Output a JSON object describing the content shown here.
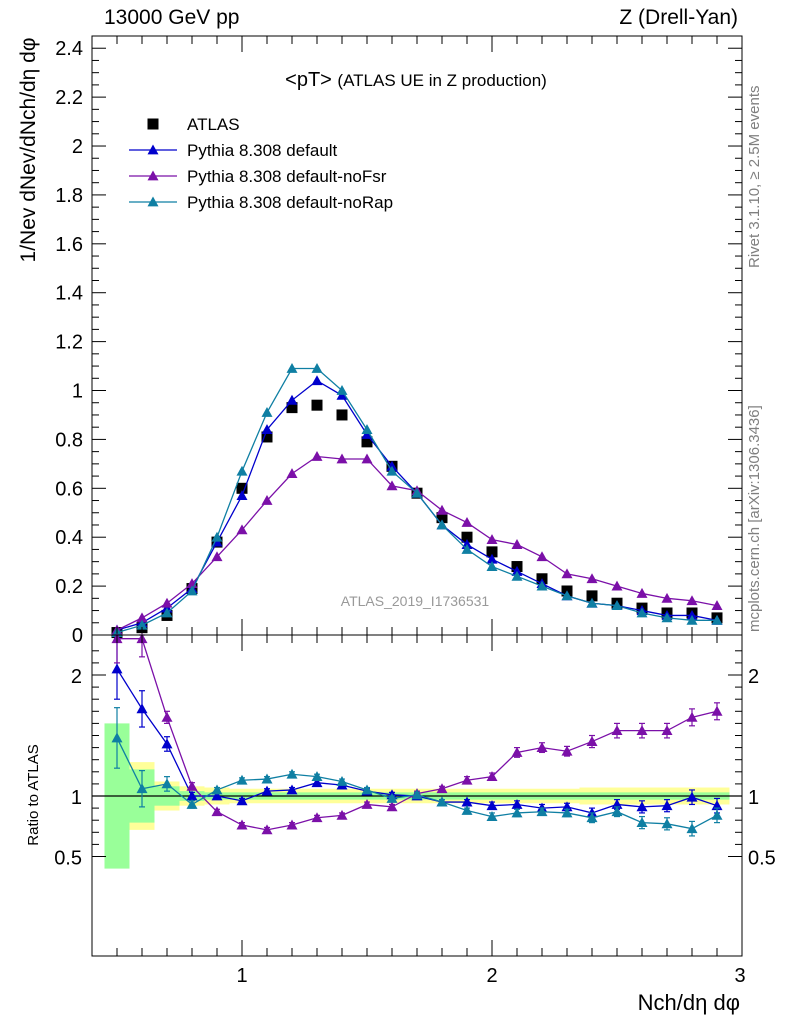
{
  "header": {
    "left": "13000 GeV pp",
    "right": "Z (Drell-Yan)"
  },
  "side_labels": {
    "top": "Rivet 3.1.10, ≥ 2.5M events",
    "bottom": "mcplots.cern.ch [arXiv:1306.3436]"
  },
  "chart_data": [
    {
      "type": "scatter",
      "title": "<pT> (ATLAS UE in Z production)",
      "title_main": "<pT>",
      "title_sub": "(ATLAS UE in Z production)",
      "watermark": "ATLAS_2019_I1736531",
      "ylabel": "1/Nev dNev/dNch/dη dφ",
      "xlim": [
        0.4,
        3.0
      ],
      "ylim": [
        0,
        2.45
      ],
      "y_ticks": [
        "0",
        "0.2",
        "0.4",
        "0.6",
        "0.8",
        "1",
        "1.2",
        "1.4",
        "1.6",
        "1.8",
        "2",
        "2.2",
        "2.4"
      ],
      "x": [
        0.5,
        0.6,
        0.7,
        0.8,
        0.9,
        1.0,
        1.1,
        1.2,
        1.3,
        1.4,
        1.5,
        1.6,
        1.7,
        1.8,
        1.9,
        2.0,
        2.1,
        2.2,
        2.3,
        2.4,
        2.5,
        2.6,
        2.7,
        2.8,
        2.9
      ],
      "legend": {
        "placement": "top-left"
      },
      "series": [
        {
          "name": "ATLAS",
          "color": "#000000",
          "marker": "square",
          "values": [
            0.01,
            0.03,
            0.08,
            0.19,
            0.38,
            0.6,
            0.81,
            0.93,
            0.94,
            0.9,
            0.79,
            0.69,
            0.58,
            0.48,
            0.4,
            0.34,
            0.28,
            0.23,
            0.18,
            0.16,
            0.13,
            0.11,
            0.09,
            0.09,
            0.07
          ]
        },
        {
          "name": "Pythia 8.308 default",
          "color": "#0000cc",
          "marker": "triangle",
          "values": [
            0.02,
            0.05,
            0.11,
            0.19,
            0.38,
            0.57,
            0.84,
            0.96,
            1.04,
            0.98,
            0.82,
            0.69,
            0.58,
            0.45,
            0.37,
            0.31,
            0.26,
            0.21,
            0.16,
            0.13,
            0.12,
            0.1,
            0.08,
            0.08,
            0.06
          ]
        },
        {
          "name": "Pythia 8.308 default-noFsr",
          "color": "#7b10a8",
          "marker": "triangle",
          "values": [
            0.02,
            0.07,
            0.13,
            0.21,
            0.32,
            0.43,
            0.55,
            0.66,
            0.73,
            0.72,
            0.72,
            0.61,
            0.59,
            0.51,
            0.46,
            0.39,
            0.37,
            0.32,
            0.25,
            0.23,
            0.2,
            0.17,
            0.15,
            0.14,
            0.12
          ]
        },
        {
          "name": "Pythia 8.308 default-noRap",
          "color": "#0f7fa3",
          "marker": "triangle",
          "values": [
            0.01,
            0.04,
            0.09,
            0.18,
            0.4,
            0.67,
            0.91,
            1.09,
            1.09,
            1.0,
            0.84,
            0.67,
            0.58,
            0.45,
            0.35,
            0.28,
            0.24,
            0.2,
            0.16,
            0.13,
            0.12,
            0.09,
            0.07,
            0.06,
            0.06
          ]
        }
      ]
    },
    {
      "type": "scatter",
      "ylabel": "Ratio to ATLAS",
      "xlabel": "Nch/dη dφ",
      "xlim": [
        0.4,
        3.0
      ],
      "ylim": [
        0.33,
        2.3
      ],
      "x_ticks": [
        "1",
        "2",
        "3"
      ],
      "y_ticks": [
        "0.5",
        "1",
        "2"
      ],
      "x": [
        0.5,
        0.6,
        0.7,
        0.8,
        0.9,
        1.0,
        1.1,
        1.2,
        1.3,
        1.4,
        1.5,
        1.6,
        1.7,
        1.8,
        1.9,
        2.0,
        2.1,
        2.2,
        2.3,
        2.4,
        2.5,
        2.6,
        2.7,
        2.8,
        2.9
      ],
      "bands": {
        "yellow_half_width": [
          0.3,
          0.28,
          0.12,
          0.08,
          0.07,
          0.06,
          0.06,
          0.06,
          0.06,
          0.06,
          0.06,
          0.06,
          0.06,
          0.06,
          0.06,
          0.06,
          0.06,
          0.06,
          0.06,
          0.07,
          0.07,
          0.07,
          0.07,
          0.07,
          0.07
        ],
        "green_half_width": [
          0.6,
          0.22,
          0.08,
          0.04,
          0.03,
          0.03,
          0.03,
          0.03,
          0.03,
          0.03,
          0.03,
          0.03,
          0.03,
          0.03,
          0.03,
          0.03,
          0.03,
          0.03,
          0.03,
          0.03,
          0.03,
          0.03,
          0.03,
          0.03,
          0.03
        ]
      },
      "series": [
        {
          "name": "Pythia 8.308 default",
          "color": "#0000cc",
          "values": [
            2.05,
            1.72,
            1.43,
            1.0,
            1.0,
            0.96,
            1.04,
            1.05,
            1.11,
            1.09,
            1.04,
            1.01,
            1.0,
            0.95,
            0.95,
            0.92,
            0.93,
            0.9,
            0.91,
            0.86,
            0.93,
            0.91,
            0.92,
            0.99,
            0.92
          ],
          "errors": [
            0.25,
            0.15,
            0.06,
            0.03,
            0.02,
            0.02,
            0.02,
            0.02,
            0.02,
            0.02,
            0.02,
            0.02,
            0.02,
            0.02,
            0.02,
            0.03,
            0.03,
            0.03,
            0.03,
            0.04,
            0.04,
            0.05,
            0.05,
            0.06,
            0.06
          ]
        },
        {
          "name": "Pythia 8.308 default-noFsr",
          "color": "#7b10a8",
          "values": [
            2.3,
            2.3,
            1.65,
            1.08,
            0.87,
            0.76,
            0.72,
            0.76,
            0.82,
            0.84,
            0.93,
            0.91,
            1.02,
            1.06,
            1.13,
            1.16,
            1.36,
            1.4,
            1.37,
            1.45,
            1.54,
            1.54,
            1.54,
            1.65,
            1.7
          ],
          "errors": [
            0.2,
            0.15,
            0.05,
            0.03,
            0.02,
            0.02,
            0.02,
            0.02,
            0.02,
            0.02,
            0.02,
            0.02,
            0.02,
            0.02,
            0.03,
            0.03,
            0.04,
            0.04,
            0.04,
            0.05,
            0.06,
            0.06,
            0.06,
            0.07,
            0.07
          ]
        },
        {
          "name": "Pythia 8.308 default-noRap",
          "color": "#0f7fa3",
          "values": [
            1.48,
            1.06,
            1.1,
            0.93,
            1.05,
            1.13,
            1.14,
            1.18,
            1.16,
            1.12,
            1.05,
            0.98,
            1.01,
            0.95,
            0.88,
            0.83,
            0.86,
            0.87,
            0.86,
            0.82,
            0.87,
            0.78,
            0.77,
            0.73,
            0.84
          ],
          "errors": [
            0.25,
            0.15,
            0.06,
            0.03,
            0.02,
            0.02,
            0.02,
            0.02,
            0.02,
            0.02,
            0.02,
            0.02,
            0.02,
            0.02,
            0.02,
            0.03,
            0.03,
            0.03,
            0.03,
            0.04,
            0.04,
            0.05,
            0.05,
            0.06,
            0.06
          ]
        }
      ]
    }
  ]
}
